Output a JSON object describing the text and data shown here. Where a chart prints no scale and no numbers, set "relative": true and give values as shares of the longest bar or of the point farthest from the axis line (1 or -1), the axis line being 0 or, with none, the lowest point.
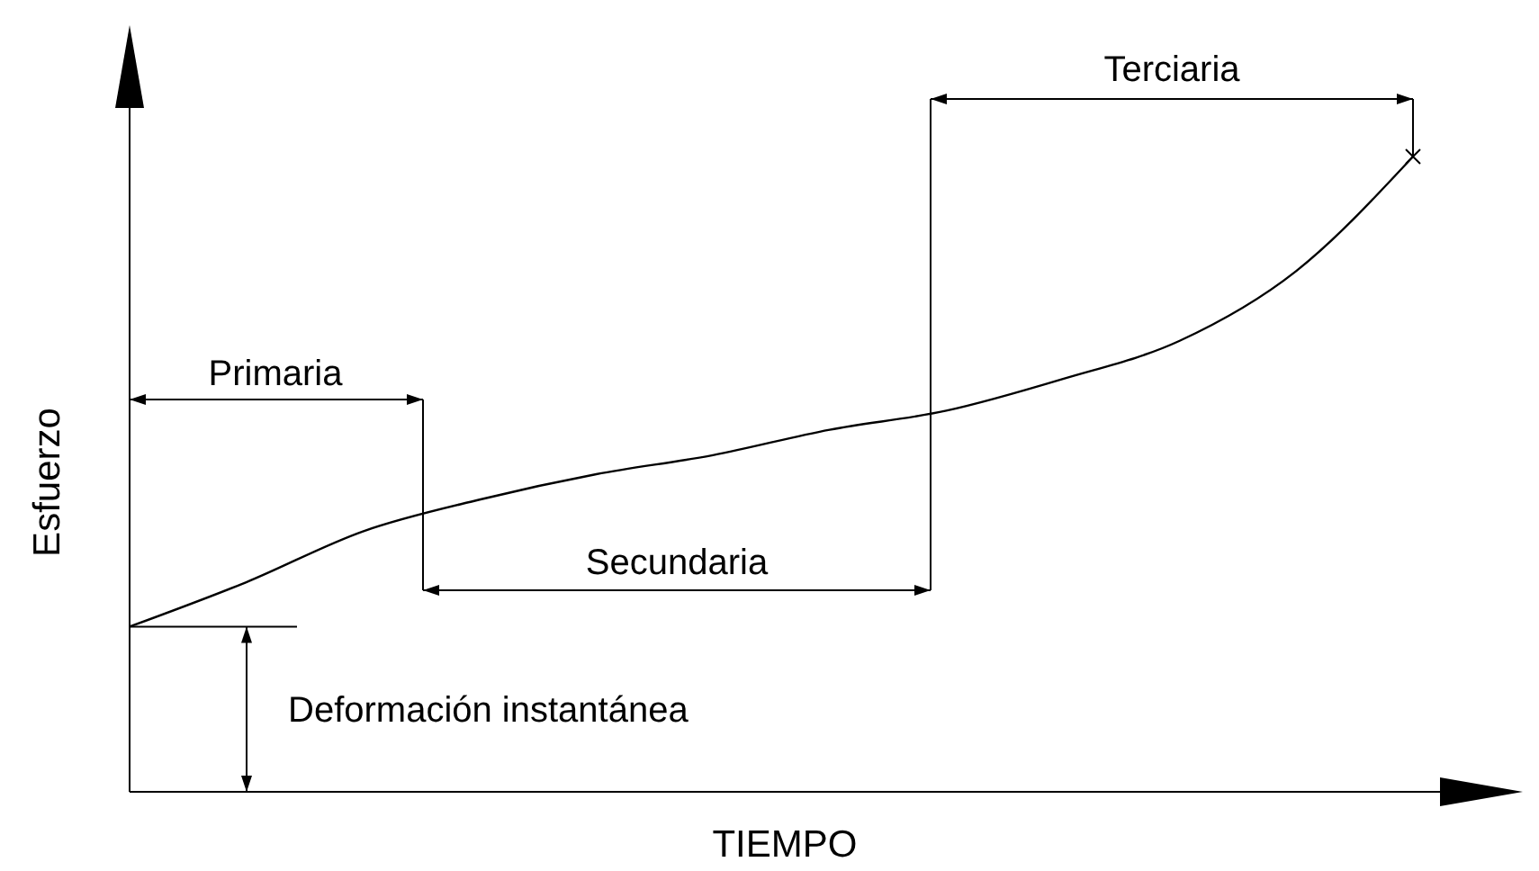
{
  "chart_data": {
    "type": "line",
    "relative": true,
    "xlabel": "TIEMPO",
    "ylabel": "Esfuerzo",
    "categories": [
      null,
      null,
      null,
      null,
      null,
      null,
      null,
      null,
      null,
      null,
      null,
      null
    ],
    "values": [
      0.26,
      0.33,
      0.41,
      0.46,
      0.5,
      0.53,
      0.57,
      0.6,
      0.65,
      0.71,
      0.82,
      1
    ],
    "color": "#000000",
    "annotations": [
      "Primaria",
      "Secundaria",
      "Terciaria",
      "Deformación instantánea"
    ]
  }
}
